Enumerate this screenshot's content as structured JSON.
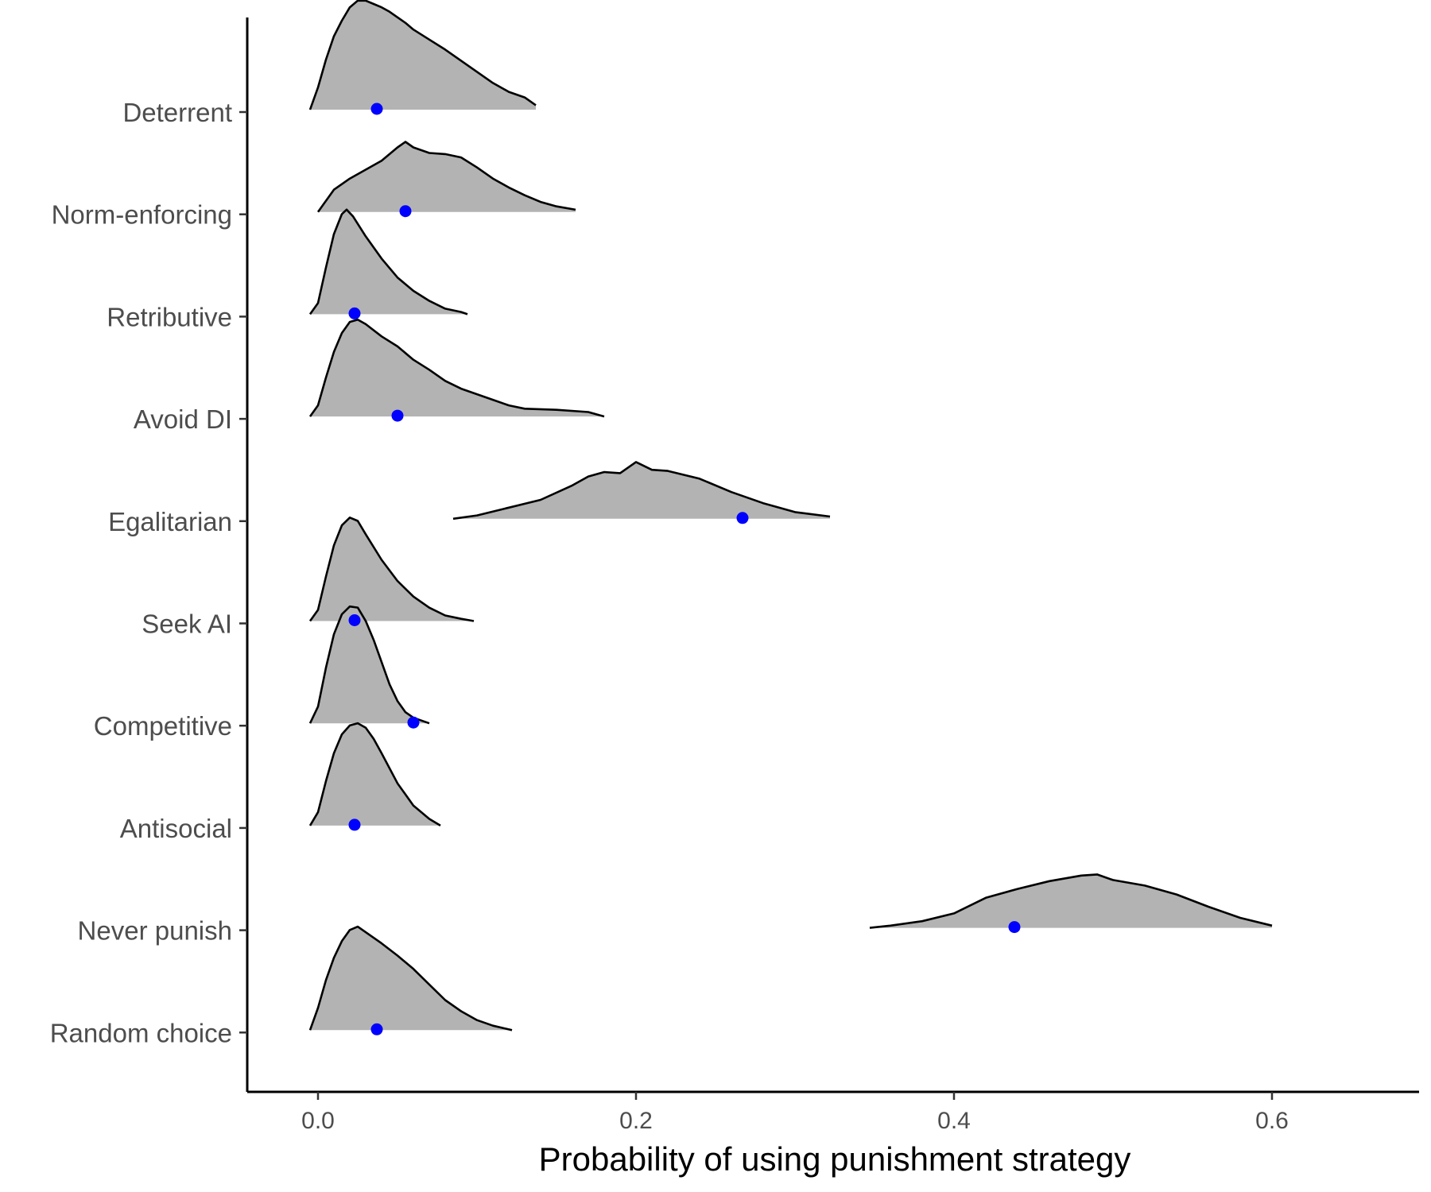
{
  "chart_data": {
    "type": "ridgeline",
    "xlabel": "Probability of using punishment strategy",
    "ylabel": "",
    "title": "",
    "xlim": [
      -0.045,
      0.69
    ],
    "x_ticks": [
      0.0,
      0.2,
      0.4,
      0.6
    ],
    "x_tick_labels": [
      "0.0",
      "0.2",
      "0.4",
      "0.6"
    ],
    "categories": [
      "Deterrent",
      "Norm-enforcing",
      "Retributive",
      "Avoid DI",
      "Egalitarian",
      "Seek AI",
      "Competitive",
      "Antisocial",
      "Never punish",
      "Random choice"
    ],
    "grid": false,
    "legend": "none",
    "colors": {
      "fill": "#b3b3b3",
      "outline": "#000000",
      "point": "#0000ff"
    },
    "series": [
      {
        "category": "Deterrent",
        "point": 0.037,
        "density": [
          [
            -0.005,
            0.0
          ],
          [
            0.0,
            0.2
          ],
          [
            0.005,
            0.45
          ],
          [
            0.01,
            0.66
          ],
          [
            0.015,
            0.8
          ],
          [
            0.02,
            0.92
          ],
          [
            0.025,
            0.98
          ],
          [
            0.03,
            0.98
          ],
          [
            0.035,
            0.95
          ],
          [
            0.04,
            0.92
          ],
          [
            0.045,
            0.88
          ],
          [
            0.05,
            0.83
          ],
          [
            0.055,
            0.78
          ],
          [
            0.06,
            0.72
          ],
          [
            0.07,
            0.63
          ],
          [
            0.08,
            0.54
          ],
          [
            0.09,
            0.44
          ],
          [
            0.1,
            0.34
          ],
          [
            0.11,
            0.24
          ],
          [
            0.12,
            0.16
          ],
          [
            0.13,
            0.11
          ],
          [
            0.137,
            0.04
          ]
        ]
      },
      {
        "category": "Norm-enforcing",
        "point": 0.055,
        "density": [
          [
            -0.0,
            0.0
          ],
          [
            0.005,
            0.1
          ],
          [
            0.01,
            0.2
          ],
          [
            0.02,
            0.3
          ],
          [
            0.03,
            0.38
          ],
          [
            0.04,
            0.46
          ],
          [
            0.05,
            0.58
          ],
          [
            0.055,
            0.63
          ],
          [
            0.06,
            0.58
          ],
          [
            0.07,
            0.53
          ],
          [
            0.08,
            0.52
          ],
          [
            0.09,
            0.49
          ],
          [
            0.1,
            0.4
          ],
          [
            0.11,
            0.3
          ],
          [
            0.12,
            0.22
          ],
          [
            0.13,
            0.15
          ],
          [
            0.14,
            0.09
          ],
          [
            0.15,
            0.05
          ],
          [
            0.162,
            0.02
          ]
        ]
      },
      {
        "category": "Retributive",
        "point": 0.023,
        "density": [
          [
            -0.005,
            0.0
          ],
          [
            0.0,
            0.1
          ],
          [
            0.005,
            0.42
          ],
          [
            0.01,
            0.72
          ],
          [
            0.015,
            0.9
          ],
          [
            0.018,
            0.94
          ],
          [
            0.022,
            0.88
          ],
          [
            0.03,
            0.7
          ],
          [
            0.04,
            0.5
          ],
          [
            0.05,
            0.33
          ],
          [
            0.06,
            0.21
          ],
          [
            0.07,
            0.12
          ],
          [
            0.08,
            0.05
          ],
          [
            0.09,
            0.02
          ],
          [
            0.094,
            0.0
          ]
        ]
      },
      {
        "category": "Avoid DI",
        "point": 0.05,
        "density": [
          [
            -0.005,
            0.0
          ],
          [
            0.0,
            0.1
          ],
          [
            0.005,
            0.35
          ],
          [
            0.01,
            0.58
          ],
          [
            0.015,
            0.75
          ],
          [
            0.02,
            0.85
          ],
          [
            0.025,
            0.87
          ],
          [
            0.03,
            0.83
          ],
          [
            0.04,
            0.72
          ],
          [
            0.05,
            0.63
          ],
          [
            0.06,
            0.51
          ],
          [
            0.07,
            0.42
          ],
          [
            0.08,
            0.32
          ],
          [
            0.09,
            0.25
          ],
          [
            0.1,
            0.2
          ],
          [
            0.11,
            0.15
          ],
          [
            0.12,
            0.1
          ],
          [
            0.13,
            0.07
          ],
          [
            0.15,
            0.06
          ],
          [
            0.17,
            0.04
          ],
          [
            0.18,
            0.0
          ]
        ]
      },
      {
        "category": "Egalitarian",
        "point": 0.267,
        "density": [
          [
            0.085,
            0.0
          ],
          [
            0.1,
            0.03
          ],
          [
            0.12,
            0.1
          ],
          [
            0.14,
            0.17
          ],
          [
            0.16,
            0.3
          ],
          [
            0.17,
            0.38
          ],
          [
            0.18,
            0.42
          ],
          [
            0.19,
            0.41
          ],
          [
            0.2,
            0.51
          ],
          [
            0.21,
            0.44
          ],
          [
            0.22,
            0.43
          ],
          [
            0.24,
            0.36
          ],
          [
            0.26,
            0.24
          ],
          [
            0.28,
            0.14
          ],
          [
            0.3,
            0.06
          ],
          [
            0.322,
            0.02
          ]
        ]
      },
      {
        "category": "Seek AI",
        "point": 0.023,
        "density": [
          [
            -0.005,
            0.0
          ],
          [
            0.0,
            0.1
          ],
          [
            0.005,
            0.4
          ],
          [
            0.01,
            0.68
          ],
          [
            0.015,
            0.86
          ],
          [
            0.02,
            0.93
          ],
          [
            0.025,
            0.9
          ],
          [
            0.03,
            0.78
          ],
          [
            0.04,
            0.55
          ],
          [
            0.05,
            0.36
          ],
          [
            0.06,
            0.22
          ],
          [
            0.07,
            0.12
          ],
          [
            0.08,
            0.05
          ],
          [
            0.09,
            0.02
          ],
          [
            0.098,
            0.0
          ]
        ]
      },
      {
        "category": "Competitive",
        "point": 0.06,
        "density": [
          [
            -0.005,
            0.0
          ],
          [
            0.0,
            0.15
          ],
          [
            0.005,
            0.5
          ],
          [
            0.01,
            0.8
          ],
          [
            0.015,
            0.98
          ],
          [
            0.02,
            1.05
          ],
          [
            0.025,
            1.04
          ],
          [
            0.03,
            0.92
          ],
          [
            0.035,
            0.75
          ],
          [
            0.04,
            0.55
          ],
          [
            0.045,
            0.35
          ],
          [
            0.05,
            0.2
          ],
          [
            0.055,
            0.1
          ],
          [
            0.06,
            0.05
          ],
          [
            0.07,
            0.0
          ]
        ]
      },
      {
        "category": "Antisocial",
        "point": 0.023,
        "density": [
          [
            -0.005,
            0.0
          ],
          [
            0.0,
            0.12
          ],
          [
            0.005,
            0.4
          ],
          [
            0.01,
            0.65
          ],
          [
            0.015,
            0.82
          ],
          [
            0.02,
            0.9
          ],
          [
            0.025,
            0.92
          ],
          [
            0.03,
            0.88
          ],
          [
            0.035,
            0.78
          ],
          [
            0.04,
            0.65
          ],
          [
            0.05,
            0.38
          ],
          [
            0.06,
            0.18
          ],
          [
            0.07,
            0.06
          ],
          [
            0.077,
            0.0
          ]
        ]
      },
      {
        "category": "Never punish",
        "point": 0.438,
        "density": [
          [
            0.347,
            0.0
          ],
          [
            0.36,
            0.02
          ],
          [
            0.38,
            0.06
          ],
          [
            0.4,
            0.13
          ],
          [
            0.42,
            0.27
          ],
          [
            0.44,
            0.35
          ],
          [
            0.46,
            0.42
          ],
          [
            0.48,
            0.47
          ],
          [
            0.49,
            0.48
          ],
          [
            0.5,
            0.43
          ],
          [
            0.52,
            0.38
          ],
          [
            0.54,
            0.3
          ],
          [
            0.56,
            0.19
          ],
          [
            0.58,
            0.09
          ],
          [
            0.6,
            0.02
          ]
        ]
      },
      {
        "category": "Random choice",
        "point": 0.037,
        "density": [
          [
            -0.005,
            0.0
          ],
          [
            0.0,
            0.2
          ],
          [
            0.005,
            0.45
          ],
          [
            0.01,
            0.65
          ],
          [
            0.015,
            0.8
          ],
          [
            0.02,
            0.9
          ],
          [
            0.025,
            0.93
          ],
          [
            0.03,
            0.88
          ],
          [
            0.035,
            0.83
          ],
          [
            0.04,
            0.78
          ],
          [
            0.05,
            0.67
          ],
          [
            0.06,
            0.55
          ],
          [
            0.07,
            0.41
          ],
          [
            0.08,
            0.27
          ],
          [
            0.09,
            0.17
          ],
          [
            0.1,
            0.09
          ],
          [
            0.11,
            0.04
          ],
          [
            0.122,
            0.0
          ]
        ]
      }
    ]
  }
}
